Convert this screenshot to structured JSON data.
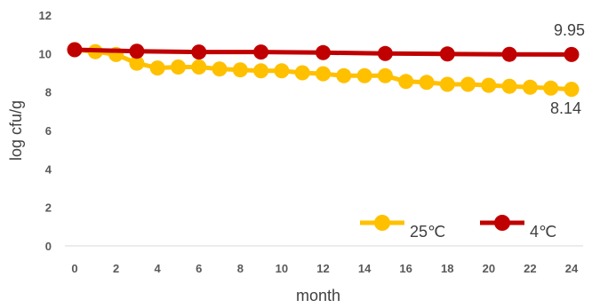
{
  "chart_data": {
    "type": "line",
    "xlabel": "month",
    "ylabel": "log cfu/g",
    "xlim": [
      0,
      24
    ],
    "ylim": [
      0,
      12
    ],
    "x_ticks": [
      "0",
      "2",
      "4",
      "6",
      "8",
      "10",
      "12",
      "14",
      "16",
      "18",
      "20",
      "22",
      "24"
    ],
    "y_ticks": [
      "0",
      "2",
      "4",
      "6",
      "8",
      "10",
      "12"
    ],
    "grid": false,
    "legend_position": "bottom-right",
    "series": [
      {
        "name": "25℃",
        "color": "#FFC000",
        "x": [
          0,
          1,
          2,
          3,
          4,
          5,
          6,
          7,
          8,
          9,
          10,
          11,
          12,
          13,
          14,
          15,
          16,
          17,
          18,
          19,
          20,
          21,
          22,
          23,
          24
        ],
        "y": [
          10.2,
          10.1,
          9.95,
          9.5,
          9.25,
          9.3,
          9.3,
          9.2,
          9.15,
          9.1,
          9.1,
          9.0,
          8.95,
          8.85,
          8.85,
          8.85,
          8.55,
          8.5,
          8.4,
          8.4,
          8.35,
          8.3,
          8.25,
          8.2,
          8.14
        ],
        "end_label": "8.14"
      },
      {
        "name": "4℃",
        "color": "#C00000",
        "x": [
          0,
          3,
          6,
          9,
          12,
          15,
          18,
          21,
          24
        ],
        "y": [
          10.2,
          10.12,
          10.08,
          10.08,
          10.05,
          10.0,
          9.98,
          9.96,
          9.95
        ],
        "end_label": "9.95"
      }
    ]
  }
}
